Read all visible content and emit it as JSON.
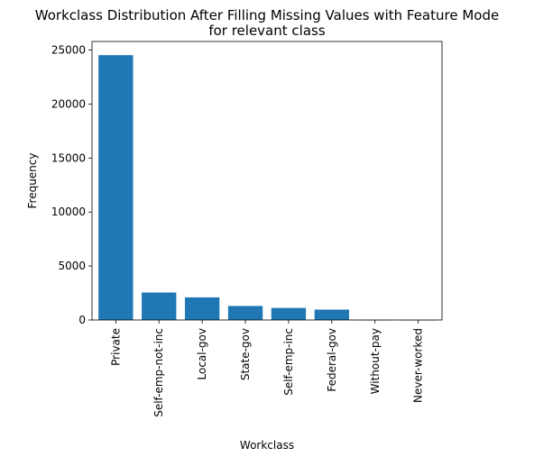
{
  "chart_data": {
    "type": "bar",
    "title_lines": [
      "Workclass Distribution After Filling Missing Values with Feature Mode",
      "for relevant class"
    ],
    "xlabel": "Workclass",
    "ylabel": "Frequency",
    "categories": [
      "Private",
      "Self-emp-not-inc",
      "Local-gov",
      "State-gov",
      "Self-emp-inc",
      "Federal-gov",
      "Without-pay",
      "Never-worked"
    ],
    "values": [
      24532,
      2541,
      2093,
      1298,
      1116,
      960,
      14,
      7
    ],
    "ylim": [
      0,
      25800
    ],
    "yticks": [
      0,
      5000,
      10000,
      15000,
      20000,
      25000
    ],
    "bar_color": "#1f77b4",
    "grid": false,
    "legend": "none"
  }
}
